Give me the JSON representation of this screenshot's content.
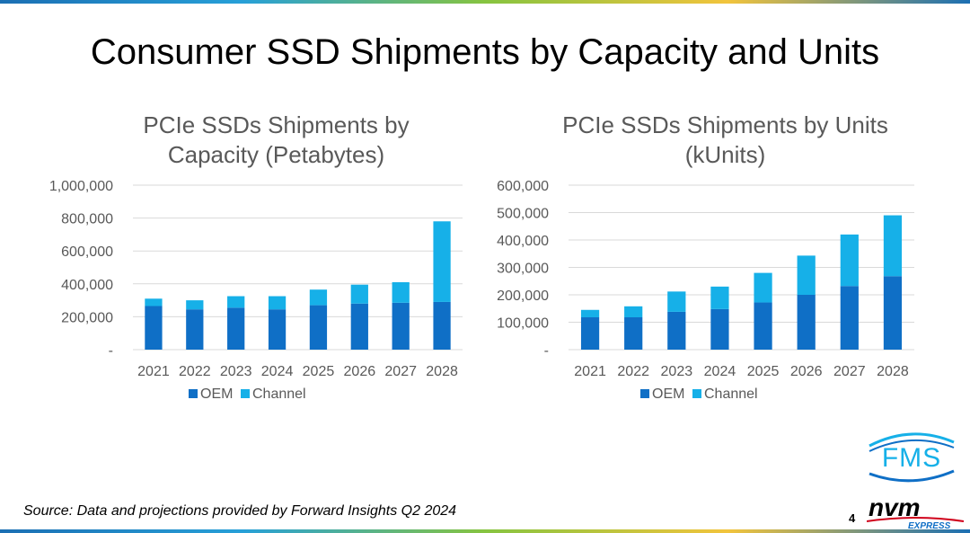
{
  "slide": {
    "title": "Consumer SSD Shipments by Capacity and Units",
    "source": "Source: Data and projections provided by Forward Insights Q2 2024",
    "page_number": "4"
  },
  "logos": {
    "fms": "FMS",
    "nvm": "nvm",
    "nvm_sub": "EXPRESS"
  },
  "colors": {
    "oem": "#0f6fc6",
    "channel": "#16b0e8",
    "grid": "#d9d9d9",
    "axis_text": "#595959"
  },
  "chart_data": [
    {
      "type": "bar",
      "stacked": true,
      "title_lines": [
        "PCIe SSDs Shipments by",
        "Capacity (Petabytes)"
      ],
      "categories": [
        "2021",
        "2022",
        "2023",
        "2024",
        "2025",
        "2026",
        "2027",
        "2028"
      ],
      "series": [
        {
          "name": "OEM",
          "values": [
            265000,
            245000,
            255000,
            245000,
            270000,
            280000,
            285000,
            290000
          ]
        },
        {
          "name": "Channel",
          "values": [
            45000,
            55000,
            70000,
            80000,
            95000,
            115000,
            125000,
            490000
          ]
        }
      ],
      "y_ticks": [
        "-",
        "200,000",
        "400,000",
        "600,000",
        "800,000",
        "1,000,000"
      ],
      "ylim": [
        0,
        1000000
      ],
      "grid": true,
      "legend_position": "bottom"
    },
    {
      "type": "bar",
      "stacked": true,
      "title_lines": [
        "PCIe SSDs Shipments by Units",
        "(kUnits)"
      ],
      "categories": [
        "2021",
        "2022",
        "2023",
        "2024",
        "2025",
        "2026",
        "2027",
        "2028"
      ],
      "series": [
        {
          "name": "OEM",
          "values": [
            118000,
            118000,
            138000,
            148000,
            172000,
            200000,
            232000,
            268000
          ]
        },
        {
          "name": "Channel",
          "values": [
            27000,
            40000,
            74000,
            82000,
            108000,
            143000,
            188000,
            222000
          ]
        }
      ],
      "y_ticks": [
        "-",
        "100,000",
        "200,000",
        "300,000",
        "400,000",
        "500,000",
        "600,000"
      ],
      "ylim": [
        0,
        600000
      ],
      "grid": true,
      "legend_position": "bottom"
    }
  ]
}
